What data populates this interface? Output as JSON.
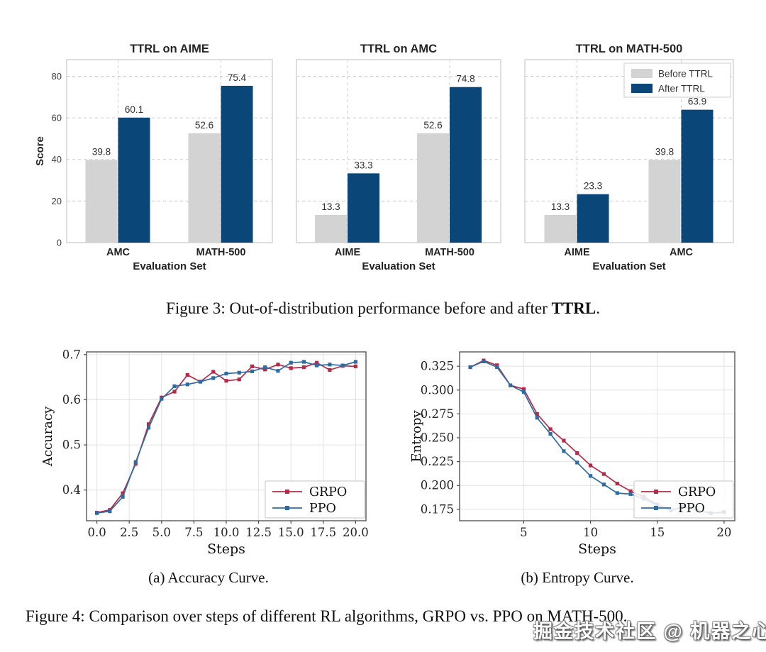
{
  "figure3": {
    "caption_prefix": "Figure 3: Out-of-distribution performance before and after ",
    "caption_bold": "TTRL",
    "caption_suffix": "."
  },
  "figure4": {
    "subcaptions": [
      "(a) Accuracy Curve.",
      "(b) Entropy Curve."
    ],
    "caption": "Figure 4: Comparison over steps of different RL algorithms, GRPO vs. PPO on MATH-500."
  },
  "watermark": "掘金技术社区 @ 机器之心",
  "colors": {
    "before_ttrl": "#d3d3d3",
    "after_ttrl": "#0a4678",
    "grpo": "#b42b4a",
    "ppo": "#2d6ca3"
  },
  "chart_data": [
    {
      "type": "bar",
      "title": "TTRL on AIME",
      "xlabel": "Evaluation Set",
      "ylabel": "Score",
      "categories": [
        "AMC",
        "MATH-500"
      ],
      "series": [
        {
          "name": "Before TTRL",
          "color": "#d3d3d3",
          "values": [
            39.8,
            52.6
          ]
        },
        {
          "name": "After TTRL",
          "color": "#0a4678",
          "values": [
            60.1,
            75.4
          ]
        }
      ],
      "ylim": [
        0,
        88
      ],
      "yticks": [
        0,
        20,
        40,
        60,
        80
      ],
      "grid": "dashed",
      "show_yaxis": true,
      "legend": false
    },
    {
      "type": "bar",
      "title": "TTRL on AMC",
      "xlabel": "Evaluation Set",
      "ylabel": "",
      "categories": [
        "AIME",
        "MATH-500"
      ],
      "series": [
        {
          "name": "Before TTRL",
          "color": "#d3d3d3",
          "values": [
            13.3,
            52.6
          ]
        },
        {
          "name": "After TTRL",
          "color": "#0a4678",
          "values": [
            33.3,
            74.8
          ]
        }
      ],
      "ylim": [
        0,
        88
      ],
      "yticks": [
        0,
        20,
        40,
        60,
        80
      ],
      "grid": "dashed",
      "show_yaxis": false,
      "legend": false
    },
    {
      "type": "bar",
      "title": "TTRL on MATH-500",
      "xlabel": "Evaluation Set",
      "ylabel": "",
      "categories": [
        "AIME",
        "AMC"
      ],
      "series": [
        {
          "name": "Before TTRL",
          "color": "#d3d3d3",
          "values": [
            13.3,
            39.8
          ]
        },
        {
          "name": "After TTRL",
          "color": "#0a4678",
          "values": [
            23.3,
            63.9
          ]
        }
      ],
      "ylim": [
        0,
        88
      ],
      "yticks": [
        0,
        20,
        40,
        60,
        80
      ],
      "grid": "dashed",
      "show_yaxis": false,
      "legend": true,
      "legend_position": "upper right",
      "legend_labels": [
        "Before TTRL",
        "After TTRL"
      ]
    },
    {
      "type": "line",
      "title": "",
      "xlabel": "Steps",
      "ylabel": "Accuracy",
      "xlim": [
        -0.8,
        20.8
      ],
      "ylim": [
        0.332,
        0.706
      ],
      "xticks": [
        0,
        2.5,
        5,
        7.5,
        10,
        12.5,
        15,
        17.5,
        20
      ],
      "xtick_labels": [
        "0.0",
        "2.5",
        "5.0",
        "7.5",
        "10.0",
        "12.5",
        "15.0",
        "17.5",
        "20.0"
      ],
      "yticks": [
        0.4,
        0.5,
        0.6,
        0.7
      ],
      "ytick_labels": [
        "0.4",
        "0.5",
        "0.6",
        "0.7"
      ],
      "grid": "solid",
      "legend": true,
      "legend_position": "lower right",
      "legend_opaque": true,
      "series": [
        {
          "name": "GRPO",
          "color": "#b42b4a",
          "x": [
            0,
            1,
            2,
            3,
            4,
            5,
            6,
            7,
            8,
            9,
            10,
            11,
            12,
            13,
            14,
            15,
            16,
            17,
            18,
            19,
            20
          ],
          "values": [
            0.35,
            0.356,
            0.393,
            0.458,
            0.546,
            0.605,
            0.618,
            0.655,
            0.64,
            0.662,
            0.642,
            0.645,
            0.674,
            0.667,
            0.678,
            0.67,
            0.672,
            0.682,
            0.666,
            0.675,
            0.674
          ]
        },
        {
          "name": "PPO",
          "color": "#2d6ca3",
          "x": [
            0,
            1,
            2,
            3,
            4,
            5,
            6,
            7,
            8,
            9,
            10,
            11,
            12,
            13,
            14,
            15,
            16,
            17,
            18,
            19,
            20
          ],
          "values": [
            0.349,
            0.353,
            0.385,
            0.462,
            0.538,
            0.602,
            0.63,
            0.634,
            0.64,
            0.648,
            0.658,
            0.66,
            0.663,
            0.672,
            0.664,
            0.682,
            0.684,
            0.676,
            0.678,
            0.676,
            0.684
          ]
        }
      ]
    },
    {
      "type": "line",
      "title": "",
      "xlabel": "Steps",
      "ylabel": "Entropy",
      "xlim": [
        0.2,
        20.8
      ],
      "ylim": [
        0.163,
        0.34
      ],
      "xticks": [
        5,
        10,
        15,
        20
      ],
      "xtick_labels": [
        "5",
        "10",
        "15",
        "20"
      ],
      "yticks": [
        0.175,
        0.2,
        0.225,
        0.25,
        0.275,
        0.3,
        0.325
      ],
      "ytick_labels": [
        "0.175",
        "0.200",
        "0.225",
        "0.250",
        "0.275",
        "0.300",
        "0.325"
      ],
      "grid": "solid",
      "legend": true,
      "legend_position": "lower right",
      "legend_opaque": false,
      "series": [
        {
          "name": "GRPO",
          "color": "#b42b4a",
          "x": [
            1,
            2,
            3,
            4,
            5,
            6,
            7,
            8,
            9,
            10,
            11,
            12,
            13,
            14,
            15,
            16,
            17,
            18,
            19,
            20
          ],
          "values": [
            0.324,
            0.331,
            0.326,
            0.305,
            0.301,
            0.275,
            0.259,
            0.247,
            0.234,
            0.221,
            0.212,
            0.202,
            0.194,
            0.188,
            0.18,
            0.174,
            0.178,
            0.174,
            0.171,
            0.172
          ]
        },
        {
          "name": "PPO",
          "color": "#2d6ca3",
          "x": [
            1,
            2,
            3,
            4,
            5,
            6,
            7,
            8,
            9,
            10,
            11,
            12,
            13,
            14,
            15,
            16,
            17,
            18,
            19,
            20
          ],
          "values": [
            0.324,
            0.33,
            0.324,
            0.305,
            0.298,
            0.271,
            0.254,
            0.236,
            0.224,
            0.21,
            0.201,
            0.192,
            0.191,
            0.186,
            0.179,
            0.174,
            0.178,
            0.174,
            0.171,
            0.172
          ]
        }
      ]
    }
  ]
}
